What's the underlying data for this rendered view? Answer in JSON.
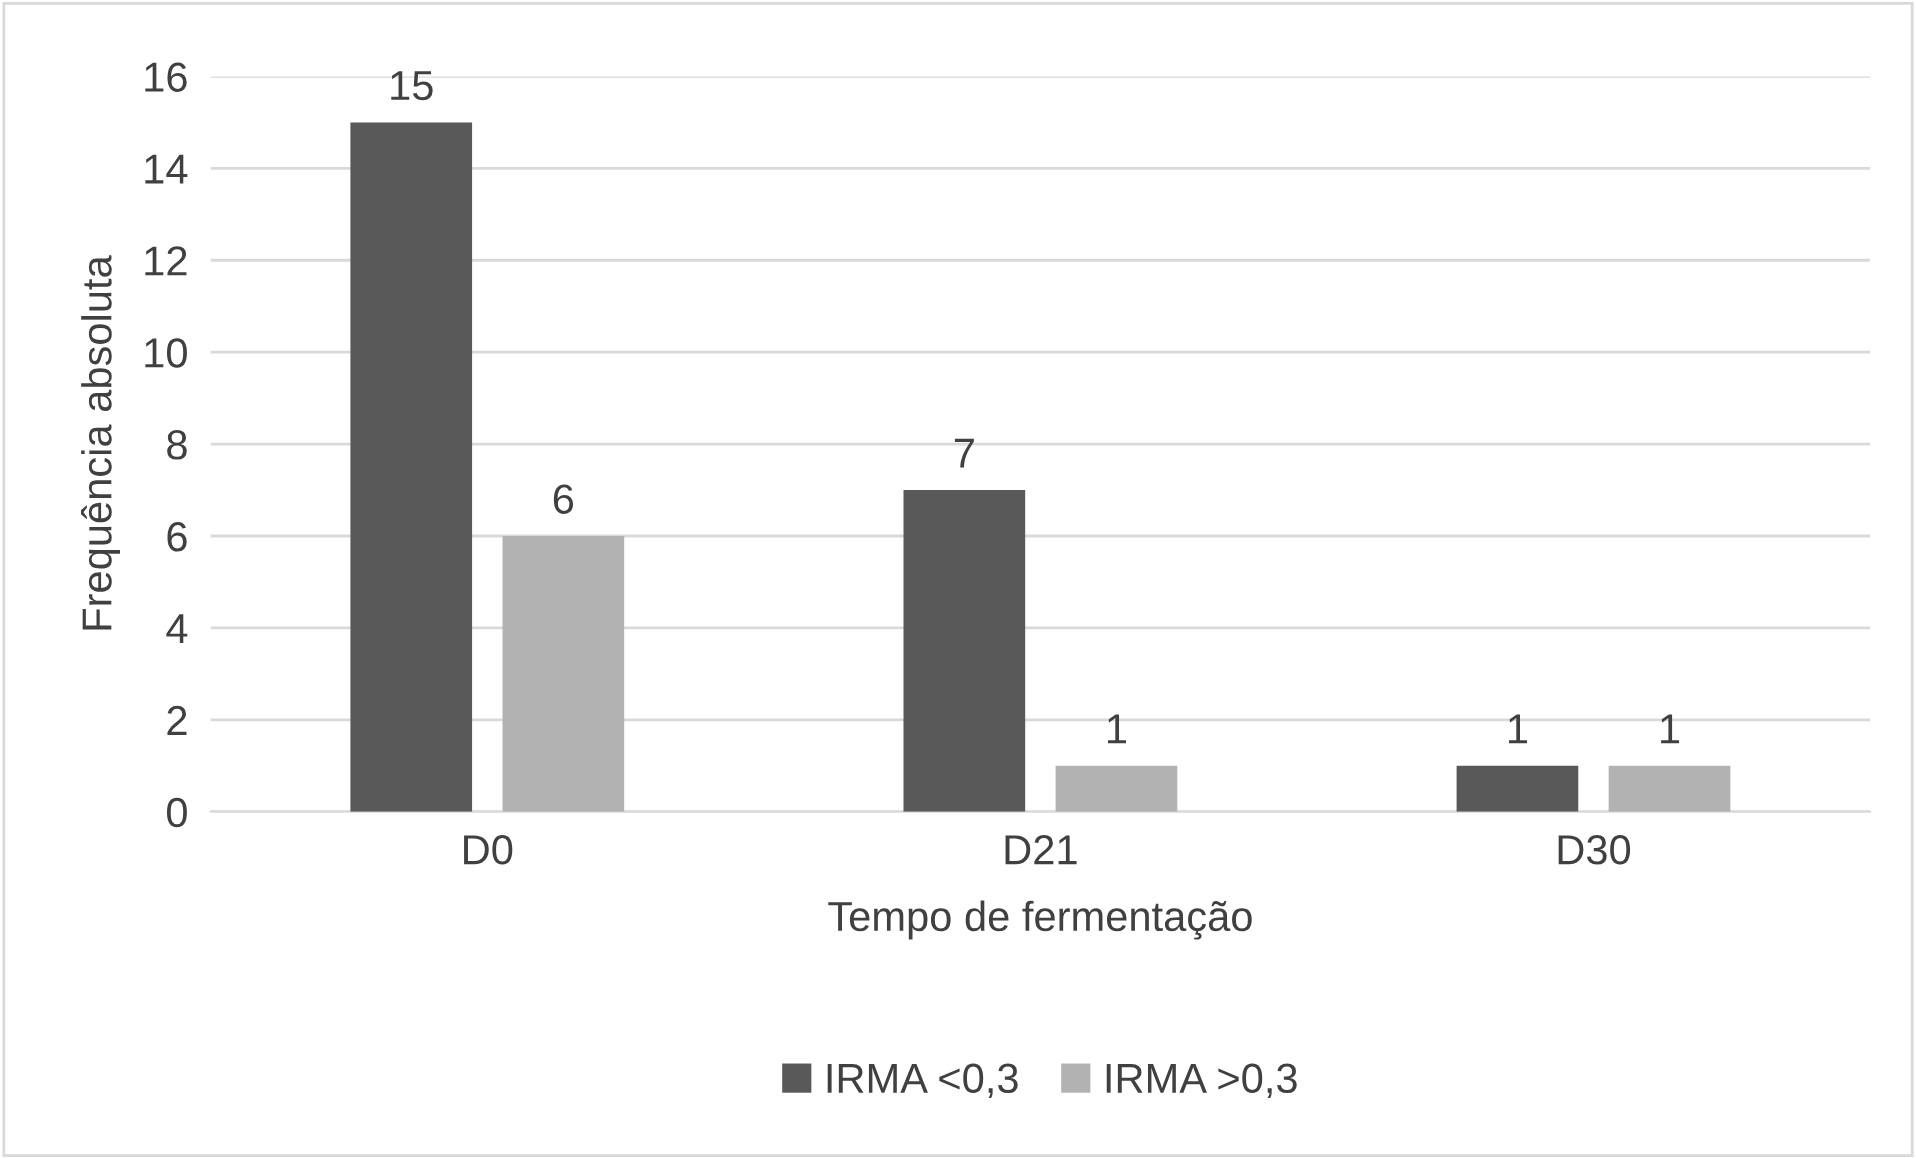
{
  "chart_data": {
    "type": "bar",
    "xlabel": "Tempo de fermentação",
    "ylabel": "Frequência absoluta",
    "categories": [
      "D0",
      "D21",
      "D30"
    ],
    "series": [
      {
        "name": "IRMA <0,3",
        "color": "#595959",
        "values": [
          15,
          7,
          1
        ]
      },
      {
        "name": "IRMA >0,3",
        "color": "#b2b2b2",
        "values": [
          6,
          1,
          1
        ]
      }
    ],
    "ylim": [
      0,
      16
    ],
    "yticks": [
      0,
      2,
      4,
      6,
      8,
      10,
      12,
      14,
      16
    ],
    "grid": "y",
    "legend": "bottom",
    "data_labels": true
  }
}
